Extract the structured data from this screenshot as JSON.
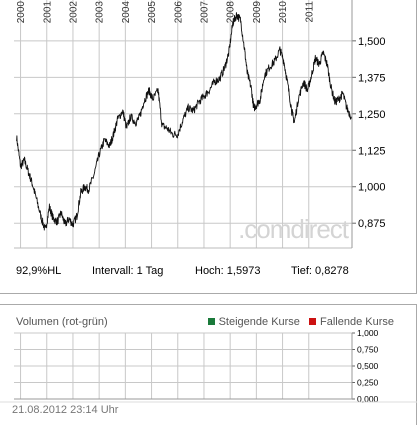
{
  "chart_data": [
    {
      "type": "line",
      "title": "",
      "x_tick_labels": [
        "2000",
        "2001",
        "2002",
        "2003",
        "2004",
        "2005",
        "2006",
        "2007",
        "2008",
        "2009",
        "2010",
        "2011"
      ],
      "y_tick_labels": [
        "1,500",
        "1,375",
        "1,250",
        "1,125",
        "1,000",
        "0,875"
      ],
      "y_ticks": [
        1.5,
        1.375,
        1.25,
        1.125,
        1.0,
        0.875
      ],
      "xlim": [
        1999.75,
        2012.65
      ],
      "ylim": [
        0.79,
        1.64
      ],
      "grid": true,
      "watermark": ".comdirect",
      "series": [
        {
          "x": [
            1999.85,
            2000.0,
            2000.15,
            2000.3,
            2000.45,
            2000.6,
            2000.8,
            2000.95,
            2001.1,
            2001.25,
            2001.4,
            2001.55,
            2001.7,
            2001.85,
            2002.0,
            2002.15,
            2002.3,
            2002.45,
            2002.6,
            2002.8,
            2003.0,
            2003.2,
            2003.4,
            2003.55,
            2003.7,
            2003.9,
            2004.05,
            2004.2,
            2004.4,
            2004.55,
            2004.7,
            2004.9,
            2005.05,
            2005.25,
            2005.4,
            2005.6,
            2005.8,
            2006.0,
            2006.2,
            2006.4,
            2006.6,
            2006.8,
            2007.0,
            2007.2,
            2007.4,
            2007.6,
            2007.8,
            2007.95,
            2008.1,
            2008.25,
            2008.4,
            2008.55,
            2008.65,
            2008.8,
            2008.9,
            2009.0,
            2009.15,
            2009.3,
            2009.5,
            2009.7,
            2009.9,
            2010.05,
            2010.2,
            2010.35,
            2010.45,
            2010.6,
            2010.8,
            2010.95,
            2011.1,
            2011.25,
            2011.4,
            2011.55,
            2011.7,
            2011.85,
            2012.0,
            2012.15,
            2012.3,
            2012.45,
            2012.62
          ],
          "y": [
            1.17,
            1.07,
            1.09,
            1.05,
            1.01,
            0.96,
            0.89,
            0.85,
            0.93,
            0.89,
            0.88,
            0.91,
            0.87,
            0.89,
            0.87,
            0.9,
            0.98,
            1.0,
            0.99,
            1.04,
            1.11,
            1.16,
            1.14,
            1.18,
            1.23,
            1.26,
            1.2,
            1.24,
            1.22,
            1.24,
            1.29,
            1.33,
            1.3,
            1.33,
            1.21,
            1.2,
            1.18,
            1.18,
            1.23,
            1.27,
            1.26,
            1.29,
            1.31,
            1.33,
            1.36,
            1.37,
            1.41,
            1.46,
            1.56,
            1.59,
            1.57,
            1.47,
            1.39,
            1.34,
            1.27,
            1.28,
            1.3,
            1.38,
            1.41,
            1.43,
            1.47,
            1.43,
            1.35,
            1.26,
            1.22,
            1.3,
            1.36,
            1.33,
            1.38,
            1.44,
            1.42,
            1.46,
            1.42,
            1.34,
            1.29,
            1.3,
            1.32,
            1.27,
            1.24
          ]
        }
      ]
    },
    {
      "type": "bar",
      "title": "Volumen (rot-grün)",
      "y_tick_labels": [
        "1,000",
        "0,750",
        "0,500",
        "0,250",
        "0,000"
      ],
      "ylim": [
        0,
        1
      ],
      "grid": true,
      "legend": [
        {
          "name": "Steigende Kurse",
          "color": "#1a7a3a"
        },
        {
          "name": "Fallende Kurse",
          "color": "#cc1111"
        }
      ]
    }
  ],
  "stats": {
    "range": "92,9%HL",
    "interval": "Intervall: 1 Tag",
    "high": "Hoch: 1,5973",
    "low": "Tief: 0,8278"
  },
  "footer": {
    "timestamp": "21.08.2012 23:14 Uhr"
  }
}
